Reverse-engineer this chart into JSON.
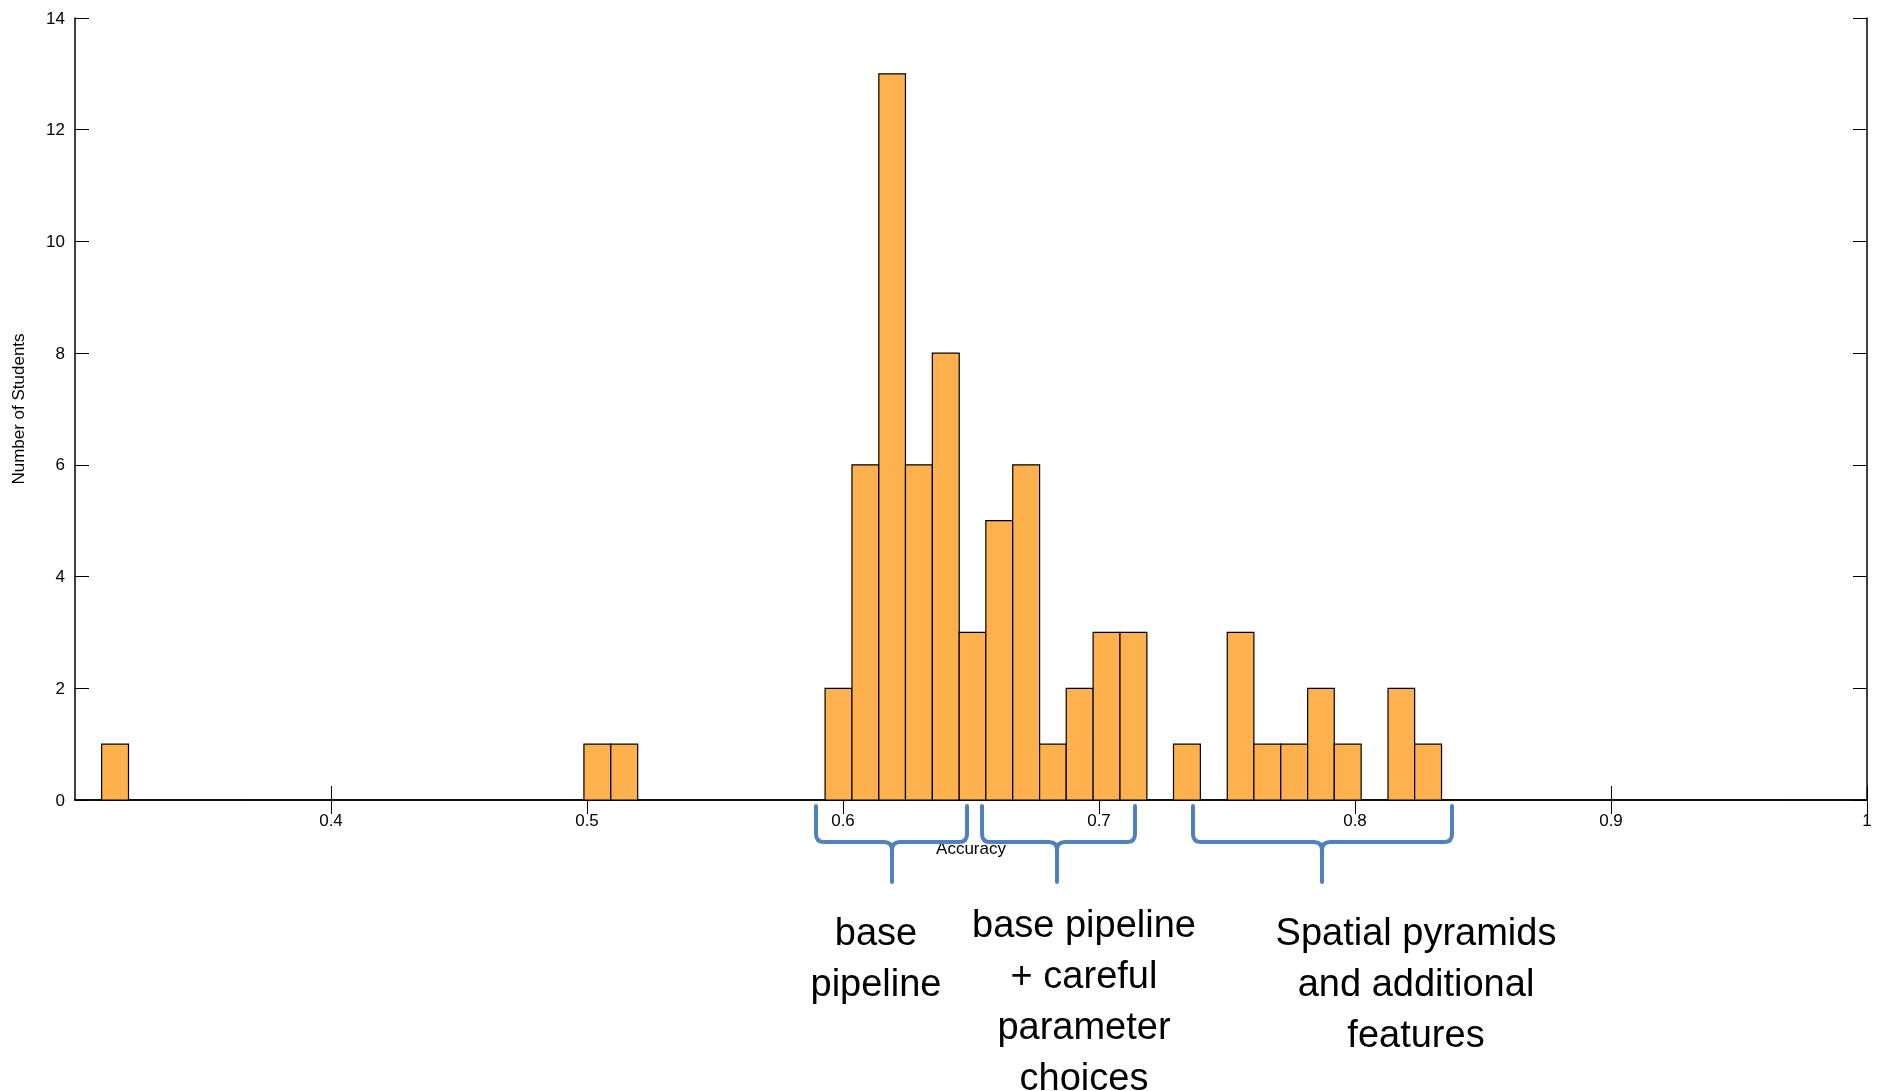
{
  "chart_data": {
    "type": "histogram",
    "xlabel": "Accuracy",
    "ylabel": "Number of Students",
    "color": "#ffb14e",
    "bins": [
      0.3104,
      0.3209,
      0.3313,
      0.3418,
      0.3523,
      0.3627,
      0.3732,
      0.3837,
      0.3941,
      0.4046,
      0.4151,
      0.4255,
      0.436,
      0.4465,
      0.457,
      0.4674,
      0.4779,
      0.4884,
      0.4988,
      0.5093,
      0.5198,
      0.5302,
      0.5407,
      0.5512,
      0.5616,
      0.5721,
      0.5826,
      0.593,
      0.6035,
      0.614,
      0.6244,
      0.6349,
      0.6454,
      0.6558,
      0.6663,
      0.6768,
      0.6872,
      0.6977,
      0.7082,
      0.7187,
      0.7291,
      0.7396,
      0.7501,
      0.7605,
      0.771,
      0.7815,
      0.7919,
      0.8024,
      0.8129,
      0.8233,
      0.8338
    ],
    "values": [
      1,
      0,
      0,
      0,
      0,
      0,
      0,
      0,
      0,
      0,
      0,
      0,
      0,
      0,
      0,
      0,
      0,
      0,
      1,
      1,
      0,
      0,
      0,
      0,
      0,
      0,
      0,
      2,
      6,
      13,
      6,
      8,
      3,
      5,
      6,
      1,
      2,
      3,
      3,
      0,
      1,
      0,
      3,
      1,
      1,
      2,
      1,
      0,
      2,
      1
    ],
    "xlim": [
      0.3,
      1
    ],
    "xticks": [
      0.4,
      0.5,
      0.6,
      0.7,
      0.8,
      0.9,
      1
    ],
    "ylim": [
      0,
      14
    ],
    "yticks": [
      0,
      2,
      4,
      6,
      8,
      10,
      12,
      14
    ],
    "grid": false,
    "annotations": [
      "base\npipeline",
      "base pipeline\n+ careful\nparameter\nchoices",
      "Spatial pyramids\nand additional\nfeatures"
    ]
  }
}
